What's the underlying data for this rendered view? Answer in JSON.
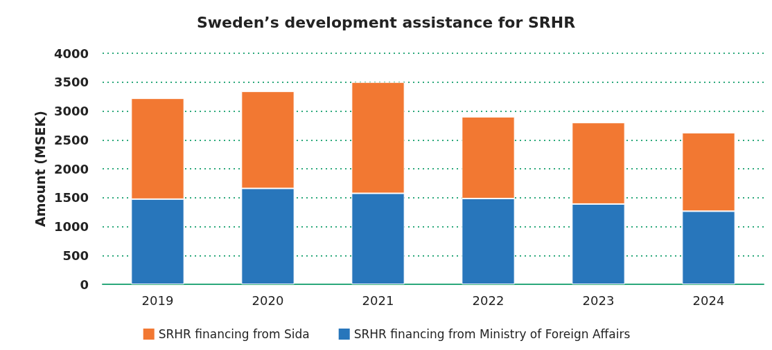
{
  "chart_data": {
    "type": "bar",
    "title": "Sweden’s development assistance for SRHR",
    "ylabel": "Amount (MSEK)",
    "categories": [
      "2019",
      "2020",
      "2021",
      "2022",
      "2023",
      "2024"
    ],
    "stacked": true,
    "series": [
      {
        "name": "SRHR financing from Ministry of Foreign Affairs",
        "color": "#2876bb",
        "values": [
          1475,
          1660,
          1575,
          1485,
          1390,
          1265
        ]
      },
      {
        "name": "SRHR financing from Sida",
        "color": "#f27832",
        "values": [
          1745,
          1680,
          1925,
          1415,
          1410,
          1360
        ]
      }
    ],
    "ylim": [
      0,
      4000
    ],
    "yticks": [
      0,
      500,
      1000,
      1500,
      2000,
      2500,
      3000,
      3500,
      4000
    ],
    "grid": "y",
    "legend": "bottom"
  }
}
